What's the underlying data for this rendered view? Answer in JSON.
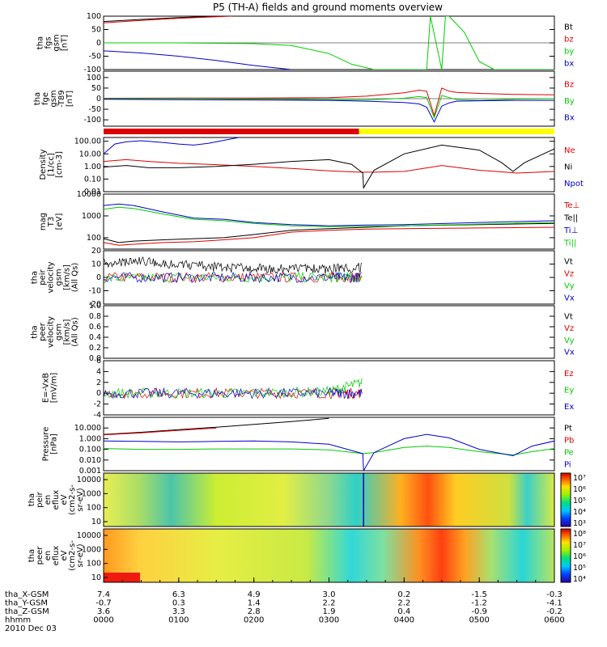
{
  "title": "P5 (TH-A) fields and ground moments overview",
  "colors": {
    "black": "#000000",
    "red": "#dd0000",
    "green": "#00cc00",
    "blue": "#0000cc",
    "yellow": "#ffff00"
  },
  "chart_data": [
    {
      "type": "line",
      "panel": "fgs",
      "ylabel": [
        "tha",
        "fgs",
        "gsm",
        "[nT]"
      ],
      "ylim": [
        -100,
        100
      ],
      "yticks": [
        "100",
        "50",
        "0",
        "-50",
        "-100"
      ],
      "legend": [
        "Bt",
        "bz",
        "by",
        "bx"
      ],
      "series": [
        {
          "name": "Bt",
          "color": "black",
          "x": [
            0,
            0.5,
            1,
            1.5,
            1.75
          ],
          "y": [
            80,
            88,
            95,
            100,
            100
          ]
        },
        {
          "name": "bz",
          "color": "red",
          "x": [
            0,
            0.5,
            1,
            1.5,
            1.7
          ],
          "y": [
            75,
            84,
            92,
            98,
            100
          ]
        },
        {
          "name": "by",
          "color": "green",
          "x": [
            0,
            1,
            2,
            2.5,
            3,
            3.3,
            3.6,
            4.3,
            4.35,
            4.5,
            4.55,
            4.6,
            4.8,
            5,
            5.2,
            6
          ],
          "y": [
            0,
            0,
            -3,
            -10,
            -40,
            -80,
            -100,
            -100,
            100,
            -100,
            100,
            100,
            40,
            -70,
            -100,
            -100
          ]
        },
        {
          "name": "bx",
          "color": "blue",
          "x": [
            0,
            0.5,
            1,
            1.5,
            2,
            2.5
          ],
          "y": [
            -30,
            -38,
            -50,
            -66,
            -85,
            -100
          ]
        }
      ]
    },
    {
      "type": "line",
      "panel": "fge",
      "ylabel": [
        "tha",
        "fge",
        "gsm",
        "-T89",
        "[nT]"
      ],
      "ylim": [
        -130,
        130
      ],
      "yticks": [
        "100",
        "50",
        "0",
        "-50",
        "-100"
      ],
      "legend": [
        "Bz",
        "By",
        "Bx"
      ],
      "series": [
        {
          "name": "Bz",
          "color": "red",
          "x": [
            0,
            1,
            2,
            3,
            3.5,
            4,
            4.2,
            4.3,
            4.4,
            4.5,
            4.6,
            4.7,
            5,
            5.5,
            6
          ],
          "y": [
            2,
            3,
            3,
            5,
            12,
            28,
            40,
            35,
            -80,
            50,
            35,
            30,
            25,
            20,
            18
          ]
        },
        {
          "name": "By",
          "color": "green",
          "x": [
            0,
            1,
            2,
            3,
            3.5,
            4,
            4.2,
            4.3,
            4.4,
            4.5,
            4.6,
            4.7,
            5,
            5.5,
            6
          ],
          "y": [
            0,
            0,
            -2,
            -5,
            -6,
            2,
            10,
            5,
            -90,
            15,
            5,
            -5,
            -8,
            -2,
            0
          ]
        },
        {
          "name": "Bx",
          "color": "blue",
          "x": [
            0,
            1,
            2,
            3,
            3.5,
            4,
            4.2,
            4.3,
            4.4,
            4.5,
            4.6,
            4.7,
            5,
            5.5,
            6
          ],
          "y": [
            -3,
            -5,
            -6,
            -8,
            -12,
            -18,
            -25,
            -40,
            -110,
            -35,
            -20,
            -12,
            -10,
            -8,
            -8
          ]
        }
      ],
      "state_bar": {
        "red_until": 3.4,
        "after": "yellow"
      }
    },
    {
      "type": "line",
      "panel": "density",
      "log": true,
      "ylabel": [
        "Density",
        "[1/cc]",
        "[cm-3]"
      ],
      "ylim": [
        0.01,
        200
      ],
      "yticks": [
        "100.00",
        "10.00",
        "1.00",
        "0.10",
        "0.01"
      ],
      "legend": [
        "Ne",
        "Ni",
        "Npot"
      ],
      "series": [
        {
          "name": "Ne",
          "color": "red",
          "x": [
            0,
            0.3,
            0.6,
            1,
            1.5,
            2,
            2.5,
            3,
            3.4,
            3.6,
            4,
            4.5,
            5,
            5.5,
            6
          ],
          "y": [
            2.5,
            3.5,
            2.5,
            1.8,
            1.4,
            1.0,
            0.7,
            0.45,
            0.35,
            0.35,
            0.4,
            1.2,
            0.5,
            0.3,
            0.4
          ]
        },
        {
          "name": "Ni",
          "color": "black",
          "x": [
            0,
            0.3,
            0.6,
            1,
            1.5,
            2,
            2.5,
            3,
            3.3,
            3.45,
            3.46,
            3.6,
            4,
            4.5,
            5,
            5.3,
            5.45,
            5.6,
            6
          ],
          "y": [
            0.9,
            1.2,
            0.8,
            0.8,
            1.0,
            1.5,
            2.5,
            3.5,
            1.5,
            0.3,
            0.02,
            0.5,
            10,
            50,
            20,
            2,
            0.4,
            2,
            25
          ]
        },
        {
          "name": "Npot",
          "color": "blue",
          "x": [
            0,
            0.15,
            0.3,
            0.5,
            0.8,
            1,
            1.2,
            1.4,
            1.6,
            1.8
          ],
          "y": [
            10,
            60,
            90,
            110,
            80,
            60,
            50,
            70,
            120,
            200
          ]
        }
      ]
    },
    {
      "type": "line",
      "panel": "temperature",
      "log": true,
      "ylabel": [
        "mag",
        "T3",
        "[eV]"
      ],
      "ylim": [
        30,
        10000
      ],
      "yticks": [
        "10000",
        "1000",
        "100"
      ],
      "legend": [
        "Te⊥",
        "Te||",
        "Ti⊥",
        "Ti||"
      ],
      "series": [
        {
          "name": "Te⊥",
          "color": "red",
          "x": [
            0,
            0.2,
            0.4,
            0.8,
            1.2,
            1.6,
            2,
            2.5,
            3,
            3.5,
            4,
            5,
            6
          ],
          "y": [
            60,
            45,
            50,
            60,
            65,
            80,
            100,
            180,
            220,
            250,
            260,
            280,
            300
          ]
        },
        {
          "name": "Te||",
          "color": "black",
          "x": [
            0,
            0.2,
            0.4,
            0.8,
            1.2,
            1.6,
            2,
            2.5,
            3,
            3.5,
            4,
            5,
            6
          ],
          "y": [
            90,
            60,
            70,
            80,
            90,
            100,
            140,
            220,
            260,
            300,
            350,
            400,
            450
          ]
        },
        {
          "name": "Ti⊥",
          "color": "blue",
          "x": [
            0,
            0.2,
            0.4,
            0.8,
            1.2,
            1.6,
            2,
            2.5,
            3,
            3.5,
            4,
            5,
            6
          ],
          "y": [
            3000,
            3500,
            3000,
            1500,
            800,
            700,
            500,
            400,
            350,
            380,
            400,
            500,
            600
          ]
        },
        {
          "name": "Ti||",
          "color": "green",
          "x": [
            0,
            0.2,
            0.4,
            0.8,
            1.2,
            1.6,
            2,
            2.5,
            3,
            3.5,
            4,
            5,
            6
          ],
          "y": [
            2000,
            2500,
            2200,
            1200,
            700,
            600,
            450,
            350,
            320,
            330,
            350,
            420,
            500
          ]
        }
      ]
    },
    {
      "type": "line",
      "panel": "peir velocity",
      "ylabel": [
        "tha",
        "peir",
        "velocity",
        "gsm",
        "[km/s]",
        "(All Qs)"
      ],
      "ylim": [
        -20,
        20
      ],
      "yticks": [
        "20",
        "10",
        "0",
        "-10",
        "-20"
      ],
      "legend": [
        "Vt",
        "Vz",
        "Vy",
        "Vx"
      ],
      "series": [
        {
          "name": "Vt",
          "color": "black",
          "noise": true,
          "x": [
            0,
            0.5,
            1,
            1.5,
            2,
            2.5,
            3,
            3.45
          ],
          "y": [
            7,
            9,
            6,
            4,
            3,
            3,
            2.5,
            4
          ]
        },
        {
          "name": "Vz",
          "color": "red",
          "noise": true,
          "x": [
            0,
            1,
            2,
            3,
            3.45
          ],
          "y": [
            0,
            0,
            0,
            0,
            0
          ]
        },
        {
          "name": "Vy",
          "color": "green",
          "noise": true,
          "x": [
            0,
            1,
            2,
            3,
            3.45
          ],
          "y": [
            -1,
            0,
            0,
            0,
            0
          ]
        },
        {
          "name": "Vx",
          "color": "blue",
          "noise": true,
          "x": [
            0,
            1,
            2,
            3,
            3.45
          ],
          "y": [
            0,
            0,
            0,
            0,
            0
          ]
        }
      ]
    },
    {
      "type": "line",
      "panel": "peer velocity",
      "ylabel": [
        "tha",
        "peer",
        "velocity",
        "gsm",
        "[km/s]",
        "(All Qs)"
      ],
      "ylim": [
        0,
        1
      ],
      "yticks": [
        "1.0",
        "0.8",
        "0.6",
        "0.4",
        "0.2",
        "0.0"
      ],
      "legend": [
        "Vt",
        "Vz",
        "Vy",
        "Vx"
      ],
      "series": []
    },
    {
      "type": "line",
      "panel": "E field",
      "ylabel": [
        "E=-VxB",
        "[mV/m]"
      ],
      "ylim": [
        -4,
        6
      ],
      "yticks": [
        "6",
        "4",
        "2",
        "0",
        "-2",
        "-4"
      ],
      "legend": [
        "Ez",
        "Ey",
        "Ex"
      ],
      "series": [
        {
          "name": "Ez",
          "color": "red",
          "noise": true,
          "x": [
            0,
            1,
            2,
            3,
            3.45
          ],
          "y": [
            0,
            0,
            0,
            0,
            0
          ]
        },
        {
          "name": "Ey",
          "color": "green",
          "noise": true,
          "x": [
            0,
            1,
            2,
            3,
            3.45
          ],
          "y": [
            0,
            0,
            0,
            0.3,
            2
          ]
        },
        {
          "name": "Ex",
          "color": "blue",
          "noise": true,
          "x": [
            0,
            1,
            2,
            3,
            3.45
          ],
          "y": [
            0,
            0,
            0,
            0,
            0
          ]
        }
      ]
    },
    {
      "type": "line",
      "panel": "pressure",
      "log": true,
      "ylabel": [
        "Pressure",
        "[nPa]"
      ],
      "ylim": [
        0.001,
        100
      ],
      "yticks": [
        "10.000",
        "1.000",
        "0.100",
        "0.010",
        "0.001"
      ],
      "legend": [
        "Pt",
        "Pb",
        "Pe",
        "Pi"
      ],
      "series": [
        {
          "name": "Pt",
          "color": "black",
          "x": [
            0,
            0.5,
            1,
            1.5,
            2,
            2.5,
            3
          ],
          "y": [
            2.5,
            4,
            7,
            12,
            22,
            40,
            80
          ]
        },
        {
          "name": "Pb",
          "color": "red",
          "x": [
            0,
            0.5,
            1,
            1.5
          ],
          "y": [
            2.3,
            3.5,
            6,
            10
          ]
        },
        {
          "name": "Pe",
          "color": "green",
          "x": [
            0,
            0.5,
            1,
            1.5,
            2,
            2.5,
            3,
            3.45,
            3.6,
            4,
            4.3,
            4.6,
            5,
            5.45,
            5.7,
            6
          ],
          "y": [
            0.12,
            0.1,
            0.1,
            0.11,
            0.11,
            0.11,
            0.09,
            0.04,
            0.05,
            0.15,
            0.2,
            0.15,
            0.06,
            0.03,
            0.06,
            0.12
          ]
        },
        {
          "name": "Pi",
          "color": "blue",
          "x": [
            0,
            0.5,
            1,
            1.5,
            2,
            2.5,
            3,
            3.45,
            3.46,
            3.6,
            4,
            4.3,
            4.6,
            5,
            5.45,
            5.7,
            6
          ],
          "y": [
            0.6,
            0.55,
            0.5,
            0.55,
            0.6,
            0.5,
            0.3,
            0.04,
            0.001,
            0.05,
            1,
            2.5,
            1.2,
            0.1,
            0.025,
            0.2,
            0.6
          ]
        }
      ]
    },
    {
      "type": "heatmap",
      "panel": "peir en_eflux",
      "ylabel": [
        "tha",
        "peir",
        "en",
        "eflux",
        "eV",
        "(cm2-s-",
        "sr-eV)"
      ],
      "yticks": [
        "10000",
        "1000",
        "100",
        "10"
      ],
      "colorbar_ticks": [
        "10⁷",
        "10⁶",
        "10⁵",
        "10⁴",
        "10³"
      ]
    },
    {
      "type": "heatmap",
      "panel": "peer en_eflux",
      "ylabel": [
        "tha",
        "peer",
        "en",
        "eflux",
        "eV",
        "(cm2-s-",
        "sr-eV)"
      ],
      "yticks": [
        "10000",
        "1000",
        "100",
        "10"
      ],
      "colorbar_ticks": [
        "10⁸",
        "10⁷",
        "10⁶",
        "10⁵",
        "10⁴"
      ]
    }
  ],
  "x_axis": {
    "rows": [
      {
        "label": "tha_X-GSM",
        "values": [
          "7.4",
          "6.3",
          "4.9",
          "3.0",
          "0.2",
          "-1.5",
          "-0.3"
        ]
      },
      {
        "label": "tha_Y-GSM",
        "values": [
          "-0.7",
          "0.3",
          "1.4",
          "2.2",
          "2.2",
          "-1.2",
          "-4.1"
        ]
      },
      {
        "label": "tha_Z-GSM",
        "values": [
          "3.6",
          "3.3",
          "2.8",
          "1.9",
          "0.4",
          "-0.9",
          "-0.2"
        ]
      },
      {
        "label": "hhmm",
        "values": [
          "0000",
          "0100",
          "0200",
          "0300",
          "0400",
          "0500",
          "0600"
        ]
      }
    ],
    "date": "2010 Dec 03"
  }
}
